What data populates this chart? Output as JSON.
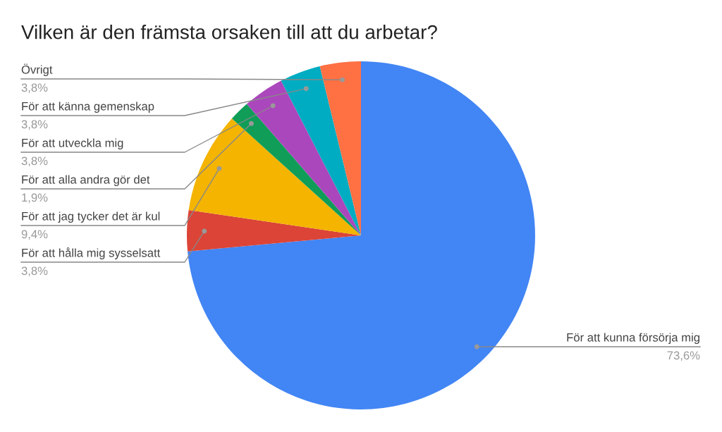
{
  "chart_data": {
    "type": "pie",
    "title": "Vilken är den främsta orsaken till att du arbetar?",
    "categories": [
      "För att kunna försörja mig",
      "För att hålla mig sysselsatt",
      "För att jag tycker det är kul",
      "För att alla andra gör det",
      "För att utveckla mig",
      "För att känna gemenskap",
      "Övrigt"
    ],
    "values": [
      73.6,
      3.8,
      9.4,
      1.9,
      3.8,
      3.8,
      3.8
    ],
    "value_labels": [
      "73,6%",
      "3,8%",
      "9,4%",
      "1,9%",
      "3,8%",
      "3,8%",
      "3,8%"
    ],
    "colors": [
      "#4285f4",
      "#db4437",
      "#f4b400",
      "#0f9d58",
      "#ab47bc",
      "#00acc1",
      "#ff7043"
    ]
  }
}
